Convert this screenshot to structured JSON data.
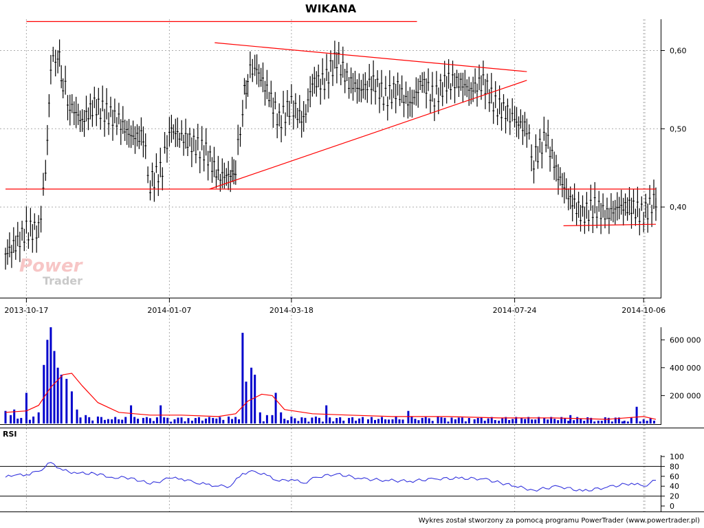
{
  "chart_data": [
    {
      "panel": "price",
      "type": "ohlc",
      "title": "WIKANA",
      "x_tick_labels": [
        "2013-10-17",
        "2014-01-07",
        "2014-03-18",
        "2014-07-24",
        "2014-10-06"
      ],
      "x_range": [
        "2013-10-05",
        "2014-10-13"
      ],
      "y_tick_labels": [
        "0,60",
        "0,50",
        "0,40"
      ],
      "y_ticks": [
        0.6,
        0.5,
        0.4
      ],
      "ylim": [
        0.285,
        0.64
      ],
      "grid": "vertical dotted",
      "close_series": [
        [
          "2013-10-05",
          0.34
        ],
        [
          "2013-10-12",
          0.355
        ],
        [
          "2013-10-17",
          0.37
        ],
        [
          "2013-10-24",
          0.37
        ],
        [
          "2013-10-28",
          0.44
        ],
        [
          "2013-10-31",
          0.58
        ],
        [
          "2013-11-04",
          0.6
        ],
        [
          "2013-11-07",
          0.56
        ],
        [
          "2013-11-11",
          0.53
        ],
        [
          "2013-11-18",
          0.51
        ],
        [
          "2013-11-25",
          0.53
        ],
        [
          "2013-12-02",
          0.52
        ],
        [
          "2013-12-09",
          0.51
        ],
        [
          "2013-12-16",
          0.49
        ],
        [
          "2013-12-23",
          0.49
        ],
        [
          "2013-12-27",
          0.43
        ],
        [
          "2014-01-03",
          0.45
        ],
        [
          "2014-01-07",
          0.5
        ],
        [
          "2014-01-14",
          0.49
        ],
        [
          "2014-01-21",
          0.48
        ],
        [
          "2014-01-28",
          0.47
        ],
        [
          "2014-02-04",
          0.44
        ],
        [
          "2014-02-11",
          0.44
        ],
        [
          "2014-02-14",
          0.45
        ],
        [
          "2014-02-18",
          0.53
        ],
        [
          "2014-02-21",
          0.57
        ],
        [
          "2014-02-25",
          0.58
        ],
        [
          "2014-03-04",
          0.55
        ],
        [
          "2014-03-11",
          0.51
        ],
        [
          "2014-03-18",
          0.53
        ],
        [
          "2014-03-25",
          0.51
        ],
        [
          "2014-03-30",
          0.56
        ],
        [
          "2014-04-06",
          0.56
        ],
        [
          "2014-04-13",
          0.59
        ],
        [
          "2014-04-20",
          0.56
        ],
        [
          "2014-04-27",
          0.55
        ],
        [
          "2014-05-04",
          0.56
        ],
        [
          "2014-05-11",
          0.54
        ],
        [
          "2014-05-18",
          0.55
        ],
        [
          "2014-05-25",
          0.53
        ],
        [
          "2014-06-01",
          0.56
        ],
        [
          "2014-06-08",
          0.54
        ],
        [
          "2014-06-15",
          0.56
        ],
        [
          "2014-06-22",
          0.56
        ],
        [
          "2014-06-29",
          0.55
        ],
        [
          "2014-07-06",
          0.56
        ],
        [
          "2014-07-13",
          0.53
        ],
        [
          "2014-07-20",
          0.52
        ],
        [
          "2014-07-24",
          0.51
        ],
        [
          "2014-07-31",
          0.5
        ],
        [
          "2014-08-04",
          0.46
        ],
        [
          "2014-08-11",
          0.49
        ],
        [
          "2014-08-18",
          0.44
        ],
        [
          "2014-08-25",
          0.41
        ],
        [
          "2014-09-01",
          0.39
        ],
        [
          "2014-09-08",
          0.4
        ],
        [
          "2014-09-15",
          0.39
        ],
        [
          "2014-09-22",
          0.4
        ],
        [
          "2014-09-29",
          0.4
        ],
        [
          "2014-10-06",
          0.39
        ],
        [
          "2014-10-13",
          0.41
        ]
      ],
      "trend_lines": [
        {
          "from": [
            "2013-10-17",
            0.637
          ],
          "to": [
            "2014-05-29",
            0.637
          ]
        },
        {
          "from": [
            "2013-10-05",
            0.423
          ],
          "to": [
            "2014-10-13",
            0.423
          ]
        },
        {
          "from": [
            "2014-02-02",
            0.61
          ],
          "to": [
            "2014-07-31",
            0.573
          ]
        },
        {
          "from": [
            "2014-01-30",
            0.423
          ],
          "to": [
            "2014-07-31",
            0.562
          ]
        },
        {
          "from": [
            "2014-08-21",
            0.376
          ],
          "to": [
            "2014-10-13",
            0.378
          ]
        }
      ]
    },
    {
      "panel": "volume",
      "type": "bar",
      "y_tick_labels": [
        "600 000",
        "400 000",
        "200 000"
      ],
      "y_ticks": [
        600000,
        400000,
        200000
      ],
      "ylim": [
        0,
        690000
      ],
      "points": [
        [
          "2013-10-05",
          90000
        ],
        [
          "2013-10-08",
          60000
        ],
        [
          "2013-10-10",
          100000
        ],
        [
          "2013-10-14",
          40000
        ],
        [
          "2013-10-17",
          220000
        ],
        [
          "2013-10-21",
          50000
        ],
        [
          "2013-10-24",
          80000
        ],
        [
          "2013-10-27",
          420000
        ],
        [
          "2013-10-29",
          600000
        ],
        [
          "2013-10-31",
          690000
        ],
        [
          "2013-11-02",
          520000
        ],
        [
          "2013-11-04",
          400000
        ],
        [
          "2013-11-06",
          350000
        ],
        [
          "2013-11-09",
          320000
        ],
        [
          "2013-11-12",
          230000
        ],
        [
          "2013-11-15",
          100000
        ],
        [
          "2013-11-20",
          60000
        ],
        [
          "2013-11-27",
          50000
        ],
        [
          "2013-12-05",
          30000
        ],
        [
          "2013-12-16",
          130000
        ],
        [
          "2013-12-23",
          40000
        ],
        [
          "2014-01-02",
          130000
        ],
        [
          "2014-01-10",
          30000
        ],
        [
          "2014-01-20",
          20000
        ],
        [
          "2014-02-01",
          40000
        ],
        [
          "2014-02-10",
          50000
        ],
        [
          "2014-02-18",
          650000
        ],
        [
          "2014-02-20",
          300000
        ],
        [
          "2014-02-23",
          400000
        ],
        [
          "2014-02-25",
          350000
        ],
        [
          "2014-02-28",
          80000
        ],
        [
          "2014-03-04",
          60000
        ],
        [
          "2014-03-07",
          60000
        ],
        [
          "2014-03-09",
          220000
        ],
        [
          "2014-03-12",
          80000
        ],
        [
          "2014-03-18",
          50000
        ],
        [
          "2014-04-01",
          50000
        ],
        [
          "2014-04-07",
          130000
        ],
        [
          "2014-04-20",
          40000
        ],
        [
          "2014-05-01",
          30000
        ],
        [
          "2014-05-15",
          30000
        ],
        [
          "2014-05-24",
          90000
        ],
        [
          "2014-06-01",
          40000
        ],
        [
          "2014-06-10",
          50000
        ],
        [
          "2014-06-20",
          30000
        ],
        [
          "2014-07-01",
          30000
        ],
        [
          "2014-07-15",
          20000
        ],
        [
          "2014-07-28",
          40000
        ],
        [
          "2014-08-10",
          40000
        ],
        [
          "2014-08-25",
          60000
        ],
        [
          "2014-09-10",
          20000
        ],
        [
          "2014-09-25",
          20000
        ],
        [
          "2014-10-02",
          120000
        ],
        [
          "2014-10-06",
          30000
        ],
        [
          "2014-10-12",
          20000
        ]
      ],
      "moving_average": [
        [
          "2013-10-05",
          80000
        ],
        [
          "2013-10-17",
          90000
        ],
        [
          "2013-10-24",
          130000
        ],
        [
          "2013-10-31",
          260000
        ],
        [
          "2013-11-07",
          350000
        ],
        [
          "2013-11-12",
          360000
        ],
        [
          "2013-11-18",
          270000
        ],
        [
          "2013-11-27",
          150000
        ],
        [
          "2013-12-09",
          80000
        ],
        [
          "2013-12-27",
          60000
        ],
        [
          "2014-01-14",
          60000
        ],
        [
          "2014-02-04",
          50000
        ],
        [
          "2014-02-14",
          70000
        ],
        [
          "2014-02-21",
          160000
        ],
        [
          "2014-03-01",
          210000
        ],
        [
          "2014-03-07",
          200000
        ],
        [
          "2014-03-14",
          100000
        ],
        [
          "2014-03-30",
          70000
        ],
        [
          "2014-04-20",
          60000
        ],
        [
          "2014-05-15",
          50000
        ],
        [
          "2014-06-15",
          50000
        ],
        [
          "2014-07-15",
          40000
        ],
        [
          "2014-08-15",
          40000
        ],
        [
          "2014-09-15",
          30000
        ],
        [
          "2014-10-06",
          50000
        ],
        [
          "2014-10-13",
          30000
        ]
      ]
    },
    {
      "panel": "rsi",
      "type": "line",
      "title": "RSI",
      "y_tick_labels": [
        "100",
        "80",
        "60",
        "40",
        "20",
        "0"
      ],
      "y_ticks": [
        100,
        80,
        60,
        40,
        20,
        0
      ],
      "ylim": [
        0,
        100
      ],
      "reference_lines": [
        80,
        20
      ],
      "points": [
        [
          "2013-10-05",
          58
        ],
        [
          "2013-10-10",
          62
        ],
        [
          "2013-10-17",
          63
        ],
        [
          "2013-10-24",
          70
        ],
        [
          "2013-10-31",
          88
        ],
        [
          "2013-11-07",
          72
        ],
        [
          "2013-11-15",
          66
        ],
        [
          "2013-11-25",
          66
        ],
        [
          "2013-12-05",
          58
        ],
        [
          "2013-12-16",
          57
        ],
        [
          "2013-12-27",
          44
        ],
        [
          "2014-01-07",
          56
        ],
        [
          "2014-01-14",
          55
        ],
        [
          "2014-01-21",
          48
        ],
        [
          "2014-01-28",
          44
        ],
        [
          "2014-02-04",
          40
        ],
        [
          "2014-02-11",
          40
        ],
        [
          "2014-02-18",
          66
        ],
        [
          "2014-02-25",
          70
        ],
        [
          "2014-03-04",
          62
        ],
        [
          "2014-03-11",
          50
        ],
        [
          "2014-03-18",
          54
        ],
        [
          "2014-03-25",
          46
        ],
        [
          "2014-04-01",
          58
        ],
        [
          "2014-04-13",
          65
        ],
        [
          "2014-04-27",
          55
        ],
        [
          "2014-05-11",
          52
        ],
        [
          "2014-05-25",
          50
        ],
        [
          "2014-06-08",
          55
        ],
        [
          "2014-06-22",
          56
        ],
        [
          "2014-07-06",
          55
        ],
        [
          "2014-07-24",
          40
        ],
        [
          "2014-08-04",
          32
        ],
        [
          "2014-08-18",
          40
        ],
        [
          "2014-09-01",
          30
        ],
        [
          "2014-09-15",
          38
        ],
        [
          "2014-09-29",
          46
        ],
        [
          "2014-10-06",
          40
        ],
        [
          "2014-10-13",
          52
        ]
      ]
    }
  ],
  "footer_text": "Wykres został stworzony za pomocą programu PowerTrader (www.powertrader.pl)",
  "watermark": {
    "line1": "Power",
    "line2": "Trader"
  },
  "colors": {
    "price_bars": "#000000",
    "trend_lines": "#ff0000",
    "volume_bars": "#0000cc",
    "volume_ma": "#ff0000",
    "rsi_line": "#3333dd",
    "grid": "#aaaaaa"
  }
}
